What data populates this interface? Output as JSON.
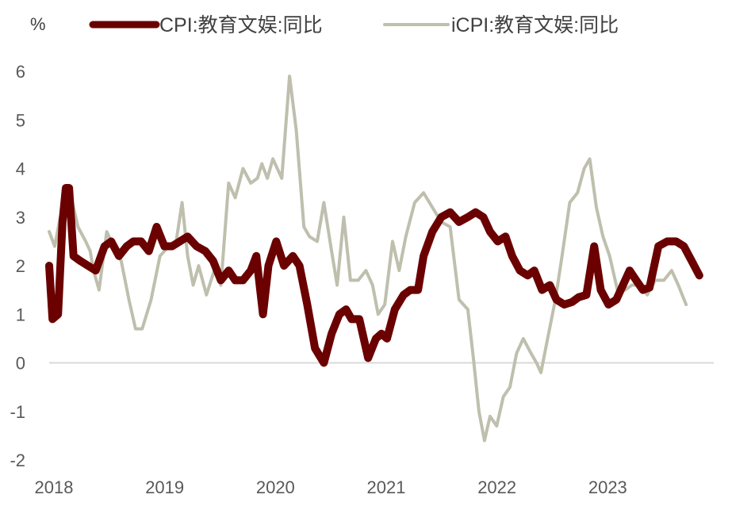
{
  "chart_data": {
    "type": "line",
    "unit_label": "%",
    "ylim": [
      -2,
      6
    ],
    "yticks": [
      -2,
      -1,
      0,
      1,
      2,
      3,
      4,
      5,
      6
    ],
    "xlim": [
      2018.0,
      2024.0
    ],
    "xticks": [
      {
        "label": "2018",
        "x": 2018.0
      },
      {
        "label": "2019",
        "x": 2019.0
      },
      {
        "label": "2020",
        "x": 2020.0
      },
      {
        "label": "2021",
        "x": 2021.0
      },
      {
        "label": "2022",
        "x": 2022.0
      },
      {
        "label": "2023",
        "x": 2023.0
      }
    ],
    "grid": false,
    "zero_line": true,
    "legend_position": "top",
    "series": [
      {
        "name": "CPI:教育文娱:同比",
        "color": "#6b0000",
        "points": [
          [
            2018.0,
            2.0
          ],
          [
            2018.03,
            0.9
          ],
          [
            2018.08,
            1.0
          ],
          [
            2018.12,
            2.9
          ],
          [
            2018.15,
            3.6
          ],
          [
            2018.18,
            3.6
          ],
          [
            2018.22,
            2.2
          ],
          [
            2018.28,
            2.1
          ],
          [
            2018.35,
            2.0
          ],
          [
            2018.42,
            1.9
          ],
          [
            2018.5,
            2.4
          ],
          [
            2018.56,
            2.5
          ],
          [
            2018.63,
            2.2
          ],
          [
            2018.7,
            2.4
          ],
          [
            2018.76,
            2.5
          ],
          [
            2018.83,
            2.5
          ],
          [
            2018.9,
            2.3
          ],
          [
            2018.97,
            2.8
          ],
          [
            2019.04,
            2.4
          ],
          [
            2019.11,
            2.4
          ],
          [
            2019.18,
            2.5
          ],
          [
            2019.25,
            2.6
          ],
          [
            2019.33,
            2.4
          ],
          [
            2019.41,
            2.3
          ],
          [
            2019.48,
            2.1
          ],
          [
            2019.55,
            1.7
          ],
          [
            2019.62,
            1.9
          ],
          [
            2019.68,
            1.7
          ],
          [
            2019.75,
            1.7
          ],
          [
            2019.82,
            1.9
          ],
          [
            2019.87,
            2.2
          ],
          [
            2019.93,
            1.0
          ],
          [
            2019.98,
            2.0
          ],
          [
            2020.05,
            2.5
          ],
          [
            2020.12,
            2.0
          ],
          [
            2020.2,
            2.2
          ],
          [
            2020.26,
            2.0
          ],
          [
            2020.33,
            1.2
          ],
          [
            2020.4,
            0.3
          ],
          [
            2020.48,
            0.0
          ],
          [
            2020.55,
            0.6
          ],
          [
            2020.62,
            1.0
          ],
          [
            2020.68,
            1.1
          ],
          [
            2020.73,
            0.9
          ],
          [
            2020.8,
            0.9
          ],
          [
            2020.88,
            0.1
          ],
          [
            2020.95,
            0.5
          ],
          [
            2021.0,
            0.6
          ],
          [
            2021.05,
            0.5
          ],
          [
            2021.12,
            1.1
          ],
          [
            2021.2,
            1.4
          ],
          [
            2021.26,
            1.5
          ],
          [
            2021.33,
            1.5
          ],
          [
            2021.38,
            2.2
          ],
          [
            2021.46,
            2.7
          ],
          [
            2021.54,
            3.0
          ],
          [
            2021.62,
            3.1
          ],
          [
            2021.7,
            2.9
          ],
          [
            2021.78,
            3.0
          ],
          [
            2021.85,
            3.1
          ],
          [
            2021.92,
            3.0
          ],
          [
            2021.98,
            2.7
          ],
          [
            2022.05,
            2.5
          ],
          [
            2022.12,
            2.6
          ],
          [
            2022.18,
            2.2
          ],
          [
            2022.25,
            1.9
          ],
          [
            2022.32,
            1.8
          ],
          [
            2022.38,
            1.9
          ],
          [
            2022.45,
            1.5
          ],
          [
            2022.52,
            1.6
          ],
          [
            2022.58,
            1.3
          ],
          [
            2022.65,
            1.2
          ],
          [
            2022.72,
            1.25
          ],
          [
            2022.78,
            1.35
          ],
          [
            2022.85,
            1.4
          ],
          [
            2022.92,
            2.4
          ],
          [
            2022.98,
            1.5
          ],
          [
            2023.05,
            1.2
          ],
          [
            2023.12,
            1.3
          ],
          [
            2023.18,
            1.6
          ],
          [
            2023.24,
            1.9
          ],
          [
            2023.3,
            1.7
          ],
          [
            2023.36,
            1.5
          ],
          [
            2023.42,
            1.55
          ],
          [
            2023.5,
            2.4
          ],
          [
            2023.58,
            2.5
          ],
          [
            2023.66,
            2.5
          ],
          [
            2023.73,
            2.4
          ],
          [
            2023.8,
            2.1
          ],
          [
            2023.87,
            1.8
          ]
        ]
      },
      {
        "name": "iCPI:教育文娱:同比",
        "color": "#bfbfae",
        "points": [
          [
            2018.0,
            2.7
          ],
          [
            2018.05,
            2.4
          ],
          [
            2018.1,
            3.0
          ],
          [
            2018.15,
            3.5
          ],
          [
            2018.2,
            3.4
          ],
          [
            2018.26,
            2.8
          ],
          [
            2018.33,
            2.5
          ],
          [
            2018.37,
            2.3
          ],
          [
            2018.4,
            1.9
          ],
          [
            2018.45,
            1.5
          ],
          [
            2018.52,
            2.7
          ],
          [
            2018.58,
            2.4
          ],
          [
            2018.65,
            2.1
          ],
          [
            2018.72,
            1.3
          ],
          [
            2018.78,
            0.7
          ],
          [
            2018.84,
            0.7
          ],
          [
            2018.92,
            1.3
          ],
          [
            2019.0,
            2.2
          ],
          [
            2019.08,
            2.4
          ],
          [
            2019.14,
            2.4
          ],
          [
            2019.2,
            3.3
          ],
          [
            2019.25,
            2.2
          ],
          [
            2019.3,
            1.6
          ],
          [
            2019.35,
            2.0
          ],
          [
            2019.42,
            1.4
          ],
          [
            2019.49,
            1.9
          ],
          [
            2019.55,
            1.6
          ],
          [
            2019.62,
            3.7
          ],
          [
            2019.68,
            3.4
          ],
          [
            2019.75,
            4.0
          ],
          [
            2019.82,
            3.7
          ],
          [
            2019.88,
            3.8
          ],
          [
            2019.92,
            4.1
          ],
          [
            2019.97,
            3.8
          ],
          [
            2020.02,
            4.2
          ],
          [
            2020.1,
            3.8
          ],
          [
            2020.17,
            5.9
          ],
          [
            2020.23,
            4.8
          ],
          [
            2020.3,
            2.8
          ],
          [
            2020.35,
            2.6
          ],
          [
            2020.42,
            2.5
          ],
          [
            2020.48,
            3.3
          ],
          [
            2020.55,
            2.3
          ],
          [
            2020.6,
            1.6
          ],
          [
            2020.66,
            3.0
          ],
          [
            2020.72,
            1.7
          ],
          [
            2020.79,
            1.7
          ],
          [
            2020.86,
            1.9
          ],
          [
            2020.92,
            1.6
          ],
          [
            2020.97,
            1.0
          ],
          [
            2021.03,
            1.2
          ],
          [
            2021.1,
            2.5
          ],
          [
            2021.16,
            1.9
          ],
          [
            2021.22,
            2.6
          ],
          [
            2021.3,
            3.3
          ],
          [
            2021.38,
            3.5
          ],
          [
            2021.46,
            3.2
          ],
          [
            2021.54,
            2.9
          ],
          [
            2021.62,
            2.8
          ],
          [
            2021.7,
            1.3
          ],
          [
            2021.78,
            1.1
          ],
          [
            2021.83,
            0.1
          ],
          [
            2021.88,
            -1.0
          ],
          [
            2021.93,
            -1.6
          ],
          [
            2021.98,
            -1.1
          ],
          [
            2022.04,
            -1.3
          ],
          [
            2022.1,
            -0.7
          ],
          [
            2022.16,
            -0.5
          ],
          [
            2022.22,
            0.2
          ],
          [
            2022.28,
            0.5
          ],
          [
            2022.35,
            0.2
          ],
          [
            2022.4,
            0.0
          ],
          [
            2022.44,
            -0.2
          ],
          [
            2022.5,
            0.5
          ],
          [
            2022.57,
            1.3
          ],
          [
            2022.63,
            2.2
          ],
          [
            2022.7,
            3.3
          ],
          [
            2022.77,
            3.5
          ],
          [
            2022.83,
            4.0
          ],
          [
            2022.88,
            4.2
          ],
          [
            2022.94,
            3.2
          ],
          [
            2023.0,
            2.6
          ],
          [
            2023.06,
            2.2
          ],
          [
            2023.13,
            1.5
          ],
          [
            2023.2,
            1.5
          ],
          [
            2023.26,
            1.6
          ],
          [
            2023.33,
            1.6
          ],
          [
            2023.4,
            1.4
          ],
          [
            2023.47,
            1.7
          ],
          [
            2023.55,
            1.7
          ],
          [
            2023.62,
            1.9
          ],
          [
            2023.68,
            1.6
          ],
          [
            2023.75,
            1.2
          ]
        ]
      }
    ]
  }
}
